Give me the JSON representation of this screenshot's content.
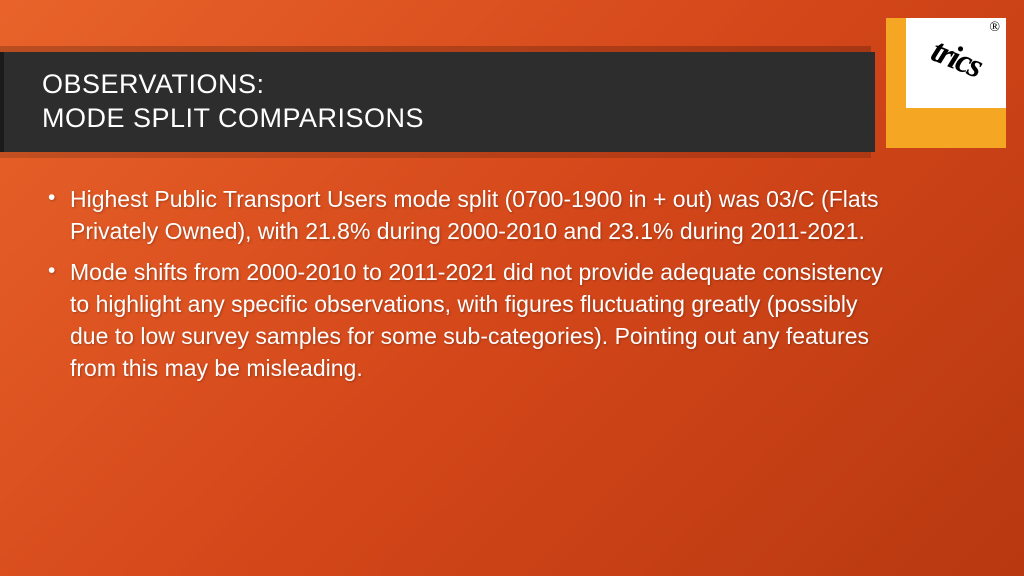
{
  "logo": {
    "text": "trics",
    "registered": "®"
  },
  "title": {
    "line1": "OBSERVATIONS:",
    "line2": "MODE SPLIT COMPARISONS"
  },
  "bullets": [
    "Highest Public Transport Users mode split (0700-1900 in + out) was 03/C (Flats Privately Owned), with 21.8% during 2000-2010 and 23.1% during 2011-2021.",
    "Mode shifts from 2000-2010 to 2011-2021 did not provide adequate consistency to highlight any specific observations, with figures fluctuating greatly (possibly due to low survey samples for some sub-categories). Pointing out any features from this may be misleading."
  ]
}
